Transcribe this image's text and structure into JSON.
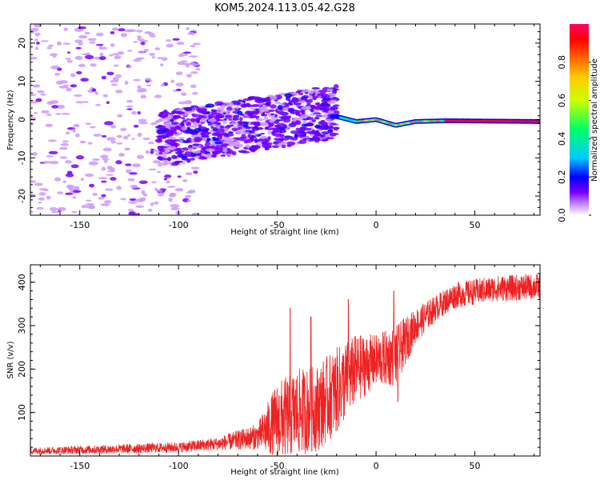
{
  "title": "KOM5.2024.113.05.42.G28",
  "chart_data": [
    {
      "type": "heatmap",
      "xlabel": "Height of straight line (km)",
      "ylabel": "Frequency (Hz)",
      "xlim": [
        -175,
        83
      ],
      "ylim": [
        -25,
        25
      ],
      "x_ticks": [
        -150,
        -100,
        -50,
        0,
        50
      ],
      "x_tick_labels": [
        "-150",
        "-100",
        "-50",
        "0",
        "50"
      ],
      "y_ticks": [
        -20,
        -10,
        0,
        10,
        20
      ],
      "y_tick_labels": [
        "-20",
        "-10",
        "0",
        "10",
        "20"
      ],
      "colorbar": {
        "label": "Normalized spectral amplitude",
        "range": [
          0,
          1
        ],
        "ticks": [
          0.0,
          0.2,
          0.4,
          0.6,
          0.8
        ],
        "tick_labels": [
          "0.0",
          "0.2",
          "0.4",
          "0.6",
          "0.8"
        ],
        "colors": [
          "#ffffff",
          "#cc99ff",
          "#7700ff",
          "#0000ff",
          "#00ccff",
          "#00ff66",
          "#ccff00",
          "#ffcc00",
          "#ff6600",
          "#ff0000",
          "#ff0066"
        ]
      },
      "features": [
        {
          "description_region": "scattered noise",
          "x_range": [
            -175,
            -100
          ],
          "f_range": [
            -25,
            25
          ],
          "amplitude": 0.1
        },
        {
          "description_region": "diagonal speckle band",
          "x_range": [
            -110,
            -20
          ],
          "f_range": [
            -10,
            8
          ],
          "amplitude": 0.25
        },
        {
          "description_region": "strong line",
          "x_range": [
            -20,
            83
          ],
          "f_range": [
            -1,
            1
          ],
          "amplitude": 0.85
        }
      ],
      "line_profile": [
        {
          "x": -20,
          "f": 0.8
        },
        {
          "x": -10,
          "f": -0.5
        },
        {
          "x": 0,
          "f": 0.0
        },
        {
          "x": 10,
          "f": -1.5
        },
        {
          "x": 20,
          "f": -0.5
        },
        {
          "x": 35,
          "f": -0.3
        },
        {
          "x": 83,
          "f": -0.5
        }
      ]
    },
    {
      "type": "line",
      "xlabel": "Height of straight line (km)",
      "ylabel": "SNR (v/v)",
      "xlim": [
        -175,
        83
      ],
      "ylim": [
        0,
        440
      ],
      "x_ticks": [
        -150,
        -100,
        -50,
        0,
        50
      ],
      "x_tick_labels": [
        "-150",
        "-100",
        "-50",
        "0",
        "50"
      ],
      "y_ticks": [
        100,
        200,
        300,
        400
      ],
      "y_tick_labels": [
        "100",
        "200",
        "300",
        "400"
      ],
      "color": "#ee2222",
      "envelope": [
        {
          "x": -175,
          "mean": 12,
          "noise": 8
        },
        {
          "x": -140,
          "mean": 15,
          "noise": 10
        },
        {
          "x": -100,
          "mean": 20,
          "noise": 12
        },
        {
          "x": -80,
          "mean": 28,
          "noise": 15
        },
        {
          "x": -60,
          "mean": 45,
          "noise": 30
        },
        {
          "x": -50,
          "mean": 80,
          "noise": 90
        },
        {
          "x": -40,
          "mean": 100,
          "noise": 100
        },
        {
          "x": -30,
          "mean": 110,
          "noise": 100
        },
        {
          "x": -20,
          "mean": 150,
          "noise": 100
        },
        {
          "x": -10,
          "mean": 200,
          "noise": 80
        },
        {
          "x": 0,
          "mean": 220,
          "noise": 60
        },
        {
          "x": 10,
          "mean": 230,
          "noise": 70
        },
        {
          "x": 20,
          "mean": 300,
          "noise": 40
        },
        {
          "x": 30,
          "mean": 340,
          "noise": 30
        },
        {
          "x": 40,
          "mean": 370,
          "noise": 30
        },
        {
          "x": 60,
          "mean": 385,
          "noise": 30
        },
        {
          "x": 83,
          "mean": 390,
          "noise": 30
        }
      ],
      "spikes": [
        {
          "x": -43.5,
          "y": 340
        },
        {
          "x": -33,
          "y": 320
        },
        {
          "x": -14,
          "y": 360
        },
        {
          "x": 9,
          "y": 380
        },
        {
          "x": 11,
          "y": 125
        }
      ]
    }
  ]
}
